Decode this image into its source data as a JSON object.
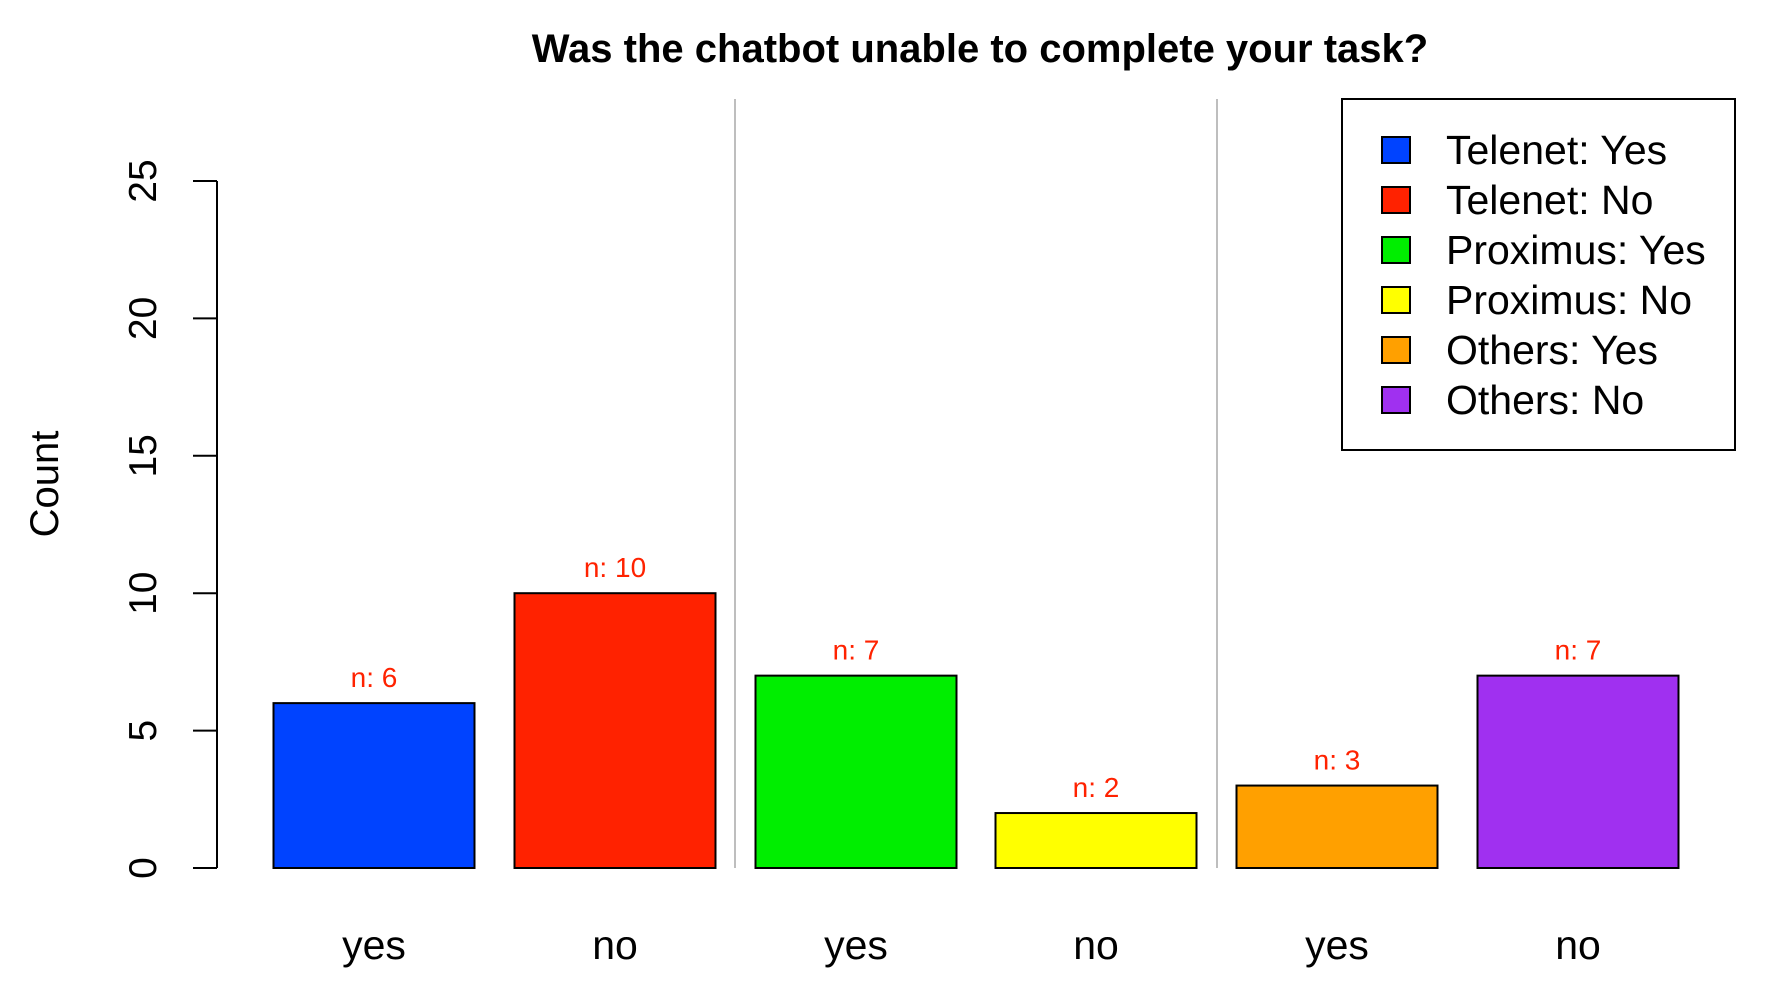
{
  "chart_data": {
    "type": "bar",
    "title": "Was the chatbot unable to complete your task?",
    "xlabel": "",
    "ylabel": "Count",
    "ylim": [
      0,
      25
    ],
    "yticks": [
      0,
      5,
      10,
      15,
      20,
      25
    ],
    "categories": [
      "yes",
      "no",
      "yes",
      "no",
      "yes",
      "no"
    ],
    "values": [
      6,
      10,
      7,
      2,
      3,
      7
    ],
    "bar_labels": [
      "n: 6",
      "n: 10",
      "n: 7",
      "n: 2",
      "n: 3",
      "n: 7"
    ],
    "series_names": [
      "Telenet: Yes",
      "Telenet: No",
      "Proximus: Yes",
      "Proximus: No",
      "Others: Yes",
      "Others: No"
    ],
    "colors": [
      "#0043FF",
      "#FF2200",
      "#00EE00",
      "#FFFF00",
      "#FFA000",
      "#A030F0"
    ],
    "label_color": "#FF2200",
    "group_separator_color": "#BEBEBE",
    "legend": {
      "position": "top-right",
      "entries": [
        "Telenet: Yes",
        "Telenet: No",
        "Proximus: Yes",
        "Proximus: No",
        "Others: Yes",
        "Others: No"
      ]
    },
    "grid": false
  }
}
